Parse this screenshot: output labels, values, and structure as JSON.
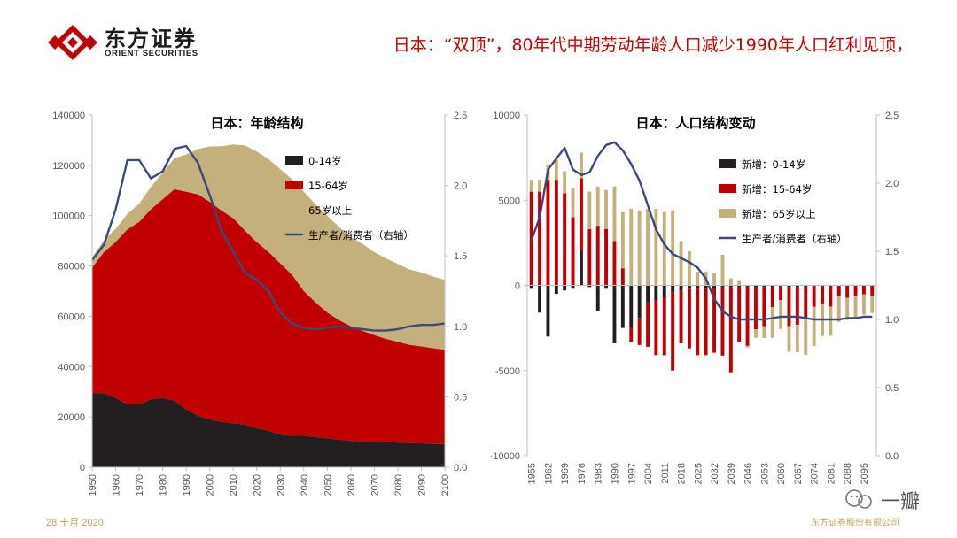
{
  "header": {
    "brand_cn": "东方证券",
    "brand_en": "ORIENT SECURITIES",
    "title": "日本：“双顶”，80年代中期劳动年龄人口减少1990年人口红利见顶，"
  },
  "footer": {
    "date": "28 十月 2020",
    "company": "东方证券股份有限公司"
  },
  "watermark": {
    "text": "一瓣"
  },
  "colors": {
    "black": "#231f20",
    "red": "#c00000",
    "khaki": "#c4b07c",
    "line": "#3a4a7a",
    "brand": "#c00000"
  },
  "chart_data": [
    {
      "type": "area",
      "title": "日本：年龄结构",
      "x": [
        1950,
        1955,
        1960,
        1965,
        1970,
        1975,
        1980,
        1985,
        1990,
        1995,
        2000,
        2005,
        2010,
        2015,
        2020,
        2025,
        2030,
        2035,
        2040,
        2045,
        2050,
        2055,
        2060,
        2065,
        2070,
        2075,
        2080,
        2085,
        2090,
        2095,
        2100
      ],
      "x_ticks": [
        "1950",
        "1960",
        "1970",
        "1980",
        "1990",
        "2000",
        "2010",
        "2020",
        "2030",
        "2040",
        "2050",
        "2060",
        "2070",
        "2080",
        "2090",
        "2100"
      ],
      "y_ticks": [
        "0",
        "20000",
        "40000",
        "60000",
        "80000",
        "100000",
        "120000",
        "140000"
      ],
      "y_right_ticks": [
        "0.0",
        "0.5",
        "1.0",
        "1.5",
        "2.0",
        "2.5"
      ],
      "ylim": [
        0,
        140000
      ],
      "ylim_right": [
        0,
        2.5
      ],
      "series": [
        {
          "name": "0-14岁",
          "values": [
            29500,
            29500,
            27500,
            25000,
            25000,
            27000,
            27500,
            26500,
            23000,
            20500,
            19000,
            18000,
            17500,
            17000,
            15500,
            14500,
            13000,
            12500,
            12500,
            12000,
            11500,
            11000,
            10500,
            10200,
            10000,
            10000,
            9800,
            9600,
            9500,
            9300,
            9200
          ]
        },
        {
          "name": "15-64岁",
          "values": [
            49700,
            56000,
            62000,
            69500,
            72500,
            75500,
            79000,
            84000,
            86500,
            88000,
            86500,
            84000,
            81500,
            77000,
            74000,
            71000,
            68000,
            64000,
            57500,
            53500,
            50000,
            47500,
            45500,
            44000,
            42500,
            41000,
            40000,
            39000,
            38500,
            38000,
            37500
          ]
        },
        {
          "name": "65岁以上",
          "values": [
            4200,
            4700,
            5300,
            6200,
            7300,
            8900,
            10600,
            12400,
            14800,
            18000,
            22000,
            25600,
            29300,
            33900,
            36000,
            37000,
            37500,
            38000,
            39500,
            39000,
            38500,
            37000,
            35500,
            34500,
            33000,
            32000,
            31000,
            30000,
            29500,
            28500,
            27800
          ]
        },
        {
          "name": "生产者/消费者（右轴）",
          "axis": "right",
          "values": [
            1.47,
            1.58,
            1.83,
            2.18,
            2.18,
            2.05,
            2.1,
            2.26,
            2.28,
            2.16,
            1.93,
            1.68,
            1.53,
            1.38,
            1.33,
            1.25,
            1.1,
            1.02,
            0.99,
            0.98,
            0.99,
            1.0,
            0.99,
            0.98,
            0.97,
            0.97,
            0.98,
            1.0,
            1.01,
            1.01,
            1.02
          ]
        }
      ]
    },
    {
      "type": "bar",
      "title": "日本：人口结构变动",
      "categories": [
        "1955",
        "1958",
        "1962",
        "1965",
        "1969",
        "1972",
        "1976",
        "1979",
        "1983",
        "1986",
        "1990",
        "1993",
        "1997",
        "2000",
        "2004",
        "2007",
        "2011",
        "2014",
        "2018",
        "2021",
        "2025",
        "2028",
        "2032",
        "2035",
        "2039",
        "2042",
        "2046",
        "2049",
        "2053",
        "2056",
        "2060",
        "2063",
        "2067",
        "2070",
        "2074",
        "2077",
        "2081",
        "2084",
        "2088",
        "2091",
        "2095",
        "2098"
      ],
      "x_ticks": [
        "1955",
        "1962",
        "1969",
        "1976",
        "1983",
        "1990",
        "1997",
        "2004",
        "2011",
        "2018",
        "2025",
        "2032",
        "2039",
        "2046",
        "2053",
        "2060",
        "2067",
        "2074",
        "2081",
        "2088",
        "2095"
      ],
      "y_ticks": [
        "-10000",
        "-5000",
        "0",
        "5000",
        "10000"
      ],
      "y_right_ticks": [
        "0.0",
        "0.5",
        "1.0",
        "1.5",
        "2.0",
        "2.5"
      ],
      "ylim": [
        -10000,
        10000
      ],
      "ylim_right": [
        0,
        2.5
      ],
      "series": [
        {
          "name": "新增：0-14岁",
          "values": [
            -200,
            -1600,
            -3000,
            -500,
            -300,
            -200,
            2000,
            -100,
            -1500,
            -200,
            -3400,
            -2500,
            -2500,
            -1900,
            -1000,
            -900,
            -700,
            -400,
            -300,
            -200,
            -200,
            -200,
            -150,
            -120,
            -100,
            -100,
            -50,
            -80,
            -90,
            -80,
            -60,
            -100,
            -120,
            -80,
            -60,
            -70,
            -50,
            -40,
            -30,
            -30,
            -20,
            -20
          ]
        },
        {
          "name": "新增：15-64岁",
          "values": [
            5500,
            5500,
            6200,
            6200,
            5400,
            4000,
            4300,
            3300,
            3500,
            3300,
            2600,
            1000,
            -800,
            -1600,
            -2600,
            -3200,
            -3400,
            -4600,
            -3100,
            -3500,
            -3900,
            -3900,
            -3800,
            -4000,
            -5000,
            -3200,
            -3500,
            -2500,
            -2300,
            -1200,
            -800,
            -2300,
            -2200,
            -1900,
            -1200,
            -1000,
            -1200,
            -600,
            -700,
            -600,
            -500,
            -600
          ]
        },
        {
          "name": "新增：65岁以上",
          "values": [
            700,
            700,
            900,
            1200,
            1300,
            1700,
            1500,
            2200,
            2300,
            2300,
            3200,
            3300,
            4500,
            4400,
            4500,
            4500,
            4300,
            4400,
            2600,
            2000,
            800,
            800,
            700,
            1800,
            400,
            300,
            -100,
            -500,
            -700,
            -1800,
            -1700,
            -1500,
            -1600,
            -2100,
            -2300,
            -1900,
            -1700,
            -1500,
            -1300,
            -1300,
            -1200,
            -1000
          ]
        },
        {
          "name": "生产者/消费者（右轴）",
          "axis": "right",
          "values": [
            1.58,
            1.75,
            2.1,
            2.18,
            2.26,
            2.1,
            2.06,
            2.08,
            2.2,
            2.28,
            2.3,
            2.24,
            2.14,
            2.02,
            1.84,
            1.66,
            1.55,
            1.48,
            1.45,
            1.42,
            1.38,
            1.3,
            1.15,
            1.06,
            1.02,
            1.0,
            1.0,
            1.0,
            1.0,
            1.01,
            1.02,
            1.02,
            1.02,
            1.01,
            1.0,
            1.0,
            1.0,
            1.0,
            1.01,
            1.01,
            1.02,
            1.02
          ]
        }
      ]
    }
  ]
}
